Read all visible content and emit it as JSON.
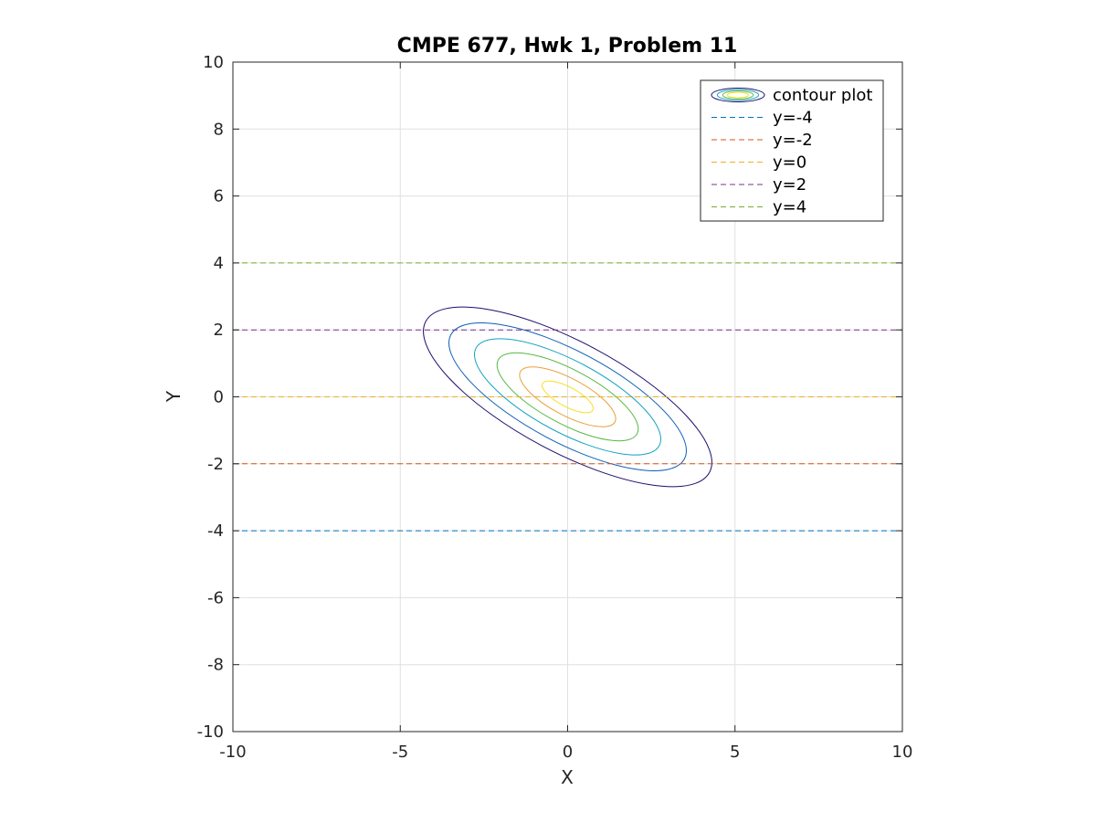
{
  "chart_data": {
    "type": "contour",
    "title": "CMPE 677, Hwk 1, Problem 11",
    "xlabel": "X",
    "ylabel": "Y",
    "xlim": [
      -10,
      10
    ],
    "ylim": [
      -10,
      10
    ],
    "xticks": [
      -10,
      -5,
      0,
      5,
      10
    ],
    "yticks": [
      -10,
      -8,
      -6,
      -4,
      -2,
      0,
      2,
      4,
      6,
      8,
      10
    ],
    "grid": true,
    "legend_location": "top-right",
    "contours": {
      "name": "contour plot",
      "center": [
        0,
        0
      ],
      "orientation_deg": -28,
      "ellipses": [
        {
          "semi_major": 4.8,
          "semi_minor": 1.65,
          "color": "#1a0e6e"
        },
        {
          "semi_major": 3.95,
          "semi_minor": 1.36,
          "color": "#0c5fb6"
        },
        {
          "semi_major": 3.1,
          "semi_minor": 1.07,
          "color": "#16a4c4"
        },
        {
          "semi_major": 2.35,
          "semi_minor": 0.81,
          "color": "#57b843"
        },
        {
          "semi_major": 1.6,
          "semi_minor": 0.55,
          "color": "#e8a13a"
        },
        {
          "semi_major": 0.85,
          "semi_minor": 0.29,
          "color": "#f4e11f"
        }
      ]
    },
    "series": [
      {
        "name": "y=-4",
        "y": -4,
        "color": "#0072bd"
      },
      {
        "name": "y=-2",
        "y": -2,
        "color": "#d95319"
      },
      {
        "name": "y=0",
        "y": 0,
        "color": "#edb120"
      },
      {
        "name": "y=2",
        "y": 2,
        "color": "#7e2f8e"
      },
      {
        "name": "y=4",
        "y": 4,
        "color": "#77ac30"
      }
    ]
  }
}
